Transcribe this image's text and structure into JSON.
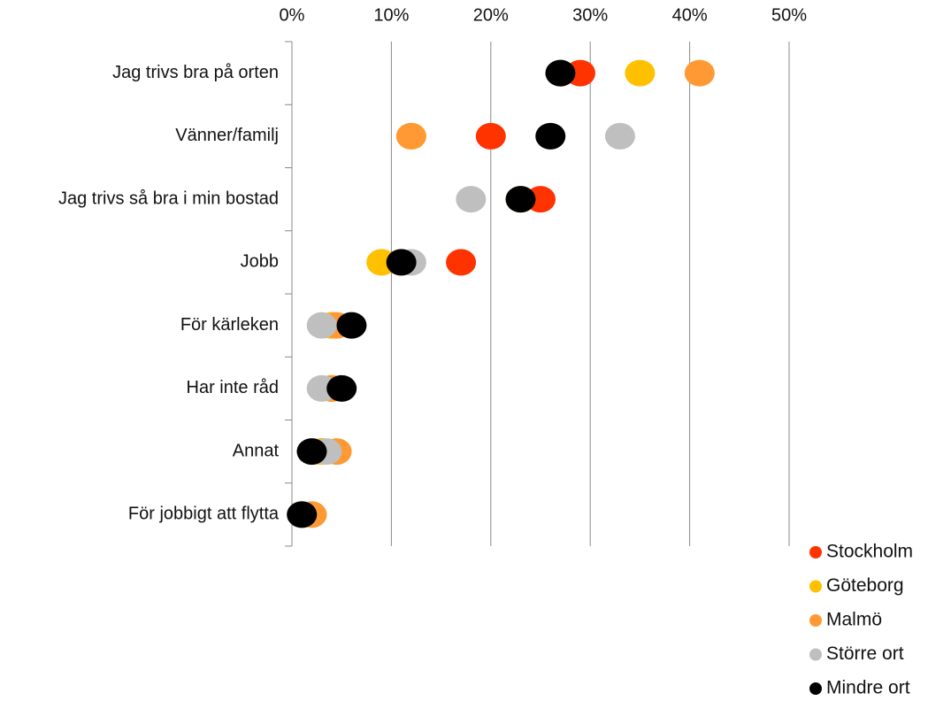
{
  "chart_data": {
    "type": "dot",
    "categories": [
      "Jag trivs bra på orten",
      "Vänner/familj",
      "Jag trivs så bra i min bostad",
      "Jobb",
      "För kärleken",
      "Har inte råd",
      "Annat",
      "För jobbigt att flytta"
    ],
    "series": [
      {
        "name": "Stockholm",
        "color": "#ff3300",
        "values": [
          29,
          20,
          25,
          17,
          4,
          4,
          3,
          1
        ]
      },
      {
        "name": "Göteborg",
        "color": "#ffc000",
        "values": [
          35,
          12,
          23,
          9,
          4,
          4,
          3,
          1
        ]
      },
      {
        "name": "Malmö",
        "color": "#ff9933",
        "values": [
          41,
          12,
          23,
          11,
          4.5,
          4,
          4.5,
          2
        ]
      },
      {
        "name": "Större ort",
        "color": "#bfbfbf",
        "values": [
          27,
          33,
          18,
          12,
          3,
          3,
          3.5,
          1
        ]
      },
      {
        "name": "Mindre ort",
        "color": "#000000",
        "values": [
          27,
          26,
          23,
          11,
          6,
          5,
          2,
          1
        ]
      }
    ],
    "xlim": [
      0,
      50
    ],
    "xticks": [
      {
        "value": 0,
        "label": "0%"
      },
      {
        "value": 10,
        "label": "10%"
      },
      {
        "value": 20,
        "label": "20%"
      },
      {
        "value": 30,
        "label": "30%"
      },
      {
        "value": 40,
        "label": "40%"
      },
      {
        "value": 50,
        "label": "50%"
      }
    ],
    "grid": true,
    "legend": "bottom-right"
  }
}
